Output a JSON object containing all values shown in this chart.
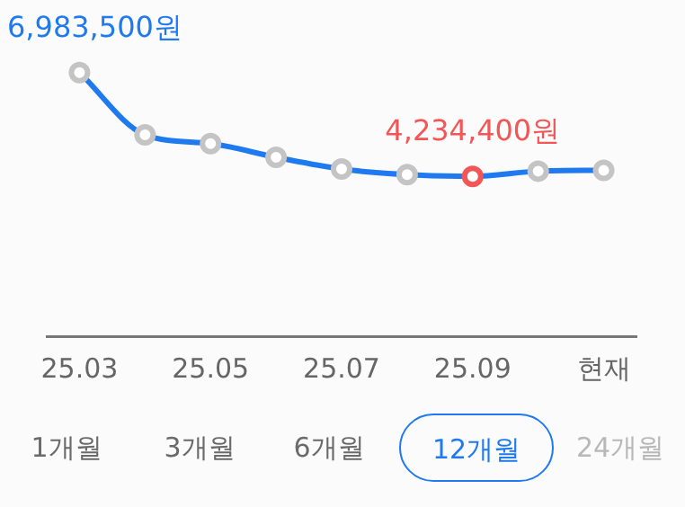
{
  "chart_data": {
    "type": "line",
    "categories": [
      "25.03",
      null,
      "25.05",
      null,
      "25.07",
      null,
      "25.09",
      null,
      "현재"
    ],
    "series": [
      {
        "color": "#1f7af0",
        "values": [
          6983500,
          5333000,
          5102000,
          4740000,
          4429000,
          4280000,
          4234400,
          4372000,
          4395000
        ],
        "colors": [
          "#c4c4c4",
          "#c4c4c4",
          "#c4c4c4",
          "#c4c4c4",
          "#c4c4c4",
          "#c4c4c4",
          "#f25656",
          "#c4c4c4",
          "#c4c4c4"
        ],
        "value_labels": [
          "6,983,500원",
          null,
          null,
          null,
          null,
          null,
          "4,234,400원",
          null,
          null
        ]
      }
    ],
    "tick_labels": "x",
    "grid": false,
    "legend": false,
    "marker": "circle",
    "line_style": "solid",
    "annotations": [
      "1개월",
      "3개월",
      "6개월",
      "12개월",
      "24개월"
    ]
  }
}
